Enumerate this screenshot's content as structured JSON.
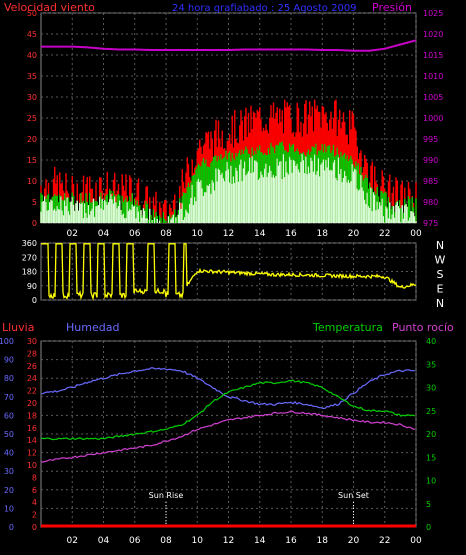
{
  "header": {
    "left_label": "Velocidad viento",
    "center_label": "24 hora grafiabado : 25 Agosto 2009",
    "right_label": "Presión"
  },
  "colors": {
    "wind_gust": "#ff0000",
    "wind_avg": "#00c800",
    "wind_min": "#d8ffd8",
    "pressure": "#c800c8",
    "direction": "#ffff00",
    "rain": "#ff0000",
    "humidity": "#6a6aff",
    "temperature": "#00d000",
    "dewpoint": "#d040d0",
    "grid": "#5a5a5a",
    "axis_text": "#ffffff"
  },
  "x_ticks": [
    "02",
    "04",
    "06",
    "08",
    "10",
    "12",
    "14",
    "16",
    "18",
    "20",
    "22",
    "00"
  ],
  "chart_data": [
    {
      "type": "area",
      "y_left_label": "Velocidad viento",
      "y_right_label": "Presión",
      "y_left_ticks": [
        0,
        5,
        10,
        15,
        20,
        25,
        30,
        35,
        40,
        45,
        50
      ],
      "y_right_ticks": [
        975,
        980,
        985,
        990,
        995,
        1000,
        1005,
        1010,
        1015,
        1020,
        1025
      ],
      "ylim_left": [
        0,
        50
      ],
      "ylim_right": [
        975,
        1025
      ],
      "x": [
        "00",
        "01",
        "02",
        "03",
        "04",
        "05",
        "06",
        "07",
        "08",
        "09",
        "10",
        "11",
        "12",
        "13",
        "14",
        "15",
        "16",
        "17",
        "18",
        "19",
        "20",
        "21",
        "22",
        "23",
        "24"
      ],
      "series": [
        {
          "name": "wind_gust",
          "values": [
            9,
            9,
            7,
            8,
            9,
            7,
            8,
            4,
            2,
            8,
            18,
            20,
            22,
            23,
            25,
            25,
            25,
            25,
            26,
            25,
            22,
            12,
            8,
            6,
            6
          ]
        },
        {
          "name": "wind_avg",
          "values": [
            7,
            7,
            6,
            6,
            7,
            6,
            6,
            3,
            1,
            5,
            14,
            15,
            16,
            17,
            17,
            18,
            18,
            17,
            18,
            17,
            15,
            9,
            6,
            5,
            5
          ]
        },
        {
          "name": "wind_min",
          "values": [
            5,
            5,
            4,
            4,
            5,
            4,
            4,
            1,
            0,
            3,
            8,
            10,
            12,
            13,
            13,
            13,
            14,
            14,
            13,
            13,
            11,
            6,
            3,
            3,
            3
          ]
        },
        {
          "name": "Presión",
          "values": [
            1017,
            1017,
            1017,
            1016.8,
            1016.5,
            1016.3,
            1016.3,
            1016.2,
            1016.2,
            1016.2,
            1016.2,
            1016.2,
            1016.2,
            1016.3,
            1016.3,
            1016.3,
            1016.3,
            1016.3,
            1016.2,
            1016.2,
            1016,
            1016,
            1016.5,
            1017.5,
            1018.5
          ]
        }
      ]
    },
    {
      "type": "line",
      "y_left_ticks": [
        0,
        90,
        180,
        270,
        360
      ],
      "y_right_letters": [
        "N",
        "W",
        "S",
        "E",
        "N"
      ],
      "ylim": [
        0,
        360
      ],
      "x": [
        "00",
        "01",
        "02",
        "03",
        "04",
        "05",
        "06",
        "07",
        "08",
        "09",
        "10",
        "11",
        "12",
        "13",
        "14",
        "15",
        "16",
        "17",
        "18",
        "19",
        "20",
        "21",
        "22",
        "23",
        "24"
      ],
      "series": [
        {
          "name": "Dirección",
          "values": [
            60,
            350,
            20,
            340,
            80,
            350,
            70,
            300,
            20,
            40,
            185,
            180,
            175,
            170,
            165,
            160,
            160,
            158,
            155,
            152,
            150,
            150,
            148,
            80,
            100
          ]
        }
      ]
    },
    {
      "type": "line",
      "labels": {
        "rain": "Lluvia",
        "humidity": "Humedad",
        "temperature": "Temperatura",
        "dewpoint": "Punto rocío"
      },
      "y_rain_ticks": [
        0,
        10,
        20,
        30,
        40,
        50,
        60,
        70,
        80,
        90,
        100
      ],
      "y_temp_ticks_left": [
        0,
        2,
        4,
        6,
        8,
        10,
        12,
        14,
        16,
        18,
        20,
        22,
        24,
        26,
        28,
        30
      ],
      "y_temp_ticks_right": [
        0,
        5,
        10,
        15,
        20,
        25,
        30,
        35,
        40
      ],
      "ylim_humidity": [
        0,
        100
      ],
      "ylim_temp": [
        0,
        40
      ],
      "annotations": [
        {
          "text": "Sun Rise",
          "x_hour": 8
        },
        {
          "text": "Sun Set",
          "x_hour": 20
        }
      ],
      "x": [
        "00",
        "01",
        "02",
        "03",
        "04",
        "05",
        "06",
        "07",
        "08",
        "09",
        "10",
        "11",
        "12",
        "13",
        "14",
        "15",
        "16",
        "17",
        "18",
        "19",
        "20",
        "21",
        "22",
        "23",
        "24"
      ],
      "series": [
        {
          "name": "Humedad",
          "values": [
            72,
            73,
            75,
            78,
            80,
            82,
            84,
            85,
            85,
            84,
            80,
            75,
            70,
            68,
            66,
            66,
            67,
            66,
            64,
            66,
            72,
            78,
            82,
            84,
            84
          ]
        },
        {
          "name": "Temperatura",
          "values": [
            19,
            19,
            19,
            19,
            19,
            19.5,
            20,
            20.5,
            21,
            22,
            24,
            27,
            29,
            30,
            31,
            31,
            31.5,
            31,
            30,
            28,
            26,
            25,
            25,
            24,
            24
          ]
        },
        {
          "name": "Punto rocío",
          "values": [
            14,
            14.5,
            15,
            15.5,
            16,
            16.5,
            17,
            17.5,
            18.5,
            19.5,
            21,
            22,
            23,
            23.5,
            24,
            24.5,
            24.8,
            24.5,
            24,
            23.5,
            23,
            22.5,
            22.5,
            22,
            21
          ]
        },
        {
          "name": "Lluvia",
          "values": [
            0,
            0,
            0,
            0,
            0,
            0,
            0,
            0,
            0,
            0,
            0,
            0,
            0,
            0,
            0,
            0,
            0,
            0,
            0,
            0,
            0,
            0,
            0,
            0,
            0
          ]
        }
      ]
    }
  ]
}
